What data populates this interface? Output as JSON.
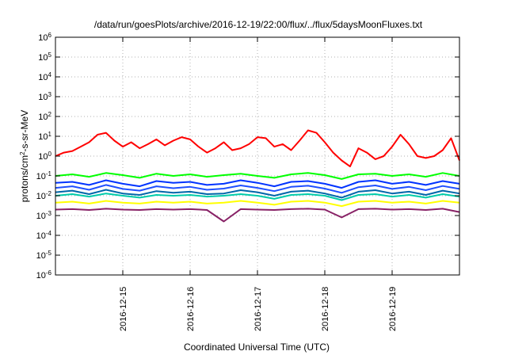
{
  "chart_data": {
    "type": "line",
    "title": "/data/run/goesPlots/archive/2016-12-19/22:00/flux/../flux/5daysMoonFluxes.txt",
    "xlabel": "Coordinated Universal Time (UTC)",
    "ylabel_parts": [
      "protons/cm",
      "2",
      "-s-sr-MeV"
    ],
    "x_range": [
      "2016-12-14T00:00",
      "2016-12-20T00:00"
    ],
    "x_ticks": [
      "2016-12-15",
      "2016-12-16",
      "2016-12-17",
      "2016-12-18",
      "2016-12-19"
    ],
    "y_scale": "log",
    "y_range": [
      1e-06,
      1000000.0
    ],
    "y_ticks": [
      {
        "base": "10",
        "exp": "-6"
      },
      {
        "base": "10",
        "exp": "-5"
      },
      {
        "base": "10",
        "exp": "-4"
      },
      {
        "base": "10",
        "exp": "-3"
      },
      {
        "base": "10",
        "exp": "-2"
      },
      {
        "base": "10",
        "exp": "-1"
      },
      {
        "base": "10",
        "exp": "0"
      },
      {
        "base": "10",
        "exp": "1"
      },
      {
        "base": "10",
        "exp": "2"
      },
      {
        "base": "10",
        "exp": "3"
      },
      {
        "base": "10",
        "exp": "4"
      },
      {
        "base": "10",
        "exp": "5"
      },
      {
        "base": "10",
        "exp": "6"
      }
    ],
    "grid": true,
    "legend": "none",
    "series": [
      {
        "color": "#ff0000",
        "x": [
          "2016-12-14T00:00",
          "2016-12-14T03:00",
          "2016-12-14T06:00",
          "2016-12-14T09:00",
          "2016-12-14T12:00",
          "2016-12-14T15:00",
          "2016-12-14T18:00",
          "2016-12-14T21:00",
          "2016-12-15T00:00",
          "2016-12-15T03:00",
          "2016-12-15T06:00",
          "2016-12-15T09:00",
          "2016-12-15T12:00",
          "2016-12-15T15:00",
          "2016-12-15T18:00",
          "2016-12-15T21:00",
          "2016-12-16T00:00",
          "2016-12-16T03:00",
          "2016-12-16T06:00",
          "2016-12-16T09:00",
          "2016-12-16T12:00",
          "2016-12-16T15:00",
          "2016-12-16T18:00",
          "2016-12-16T21:00",
          "2016-12-17T00:00",
          "2016-12-17T03:00",
          "2016-12-17T06:00",
          "2016-12-17T09:00",
          "2016-12-17T12:00",
          "2016-12-17T15:00",
          "2016-12-17T18:00",
          "2016-12-17T21:00",
          "2016-12-18T00:00",
          "2016-12-18T03:00",
          "2016-12-18T06:00",
          "2016-12-18T09:00",
          "2016-12-18T12:00",
          "2016-12-18T15:00",
          "2016-12-18T18:00",
          "2016-12-18T21:00",
          "2016-12-19T00:00",
          "2016-12-19T03:00",
          "2016-12-19T06:00",
          "2016-12-19T09:00",
          "2016-12-19T12:00",
          "2016-12-19T15:00",
          "2016-12-19T18:00",
          "2016-12-19T21:00",
          "2016-12-20T00:00"
        ],
        "values": [
          1.0,
          1.5,
          1.8,
          3.0,
          5.0,
          12,
          15,
          6,
          3,
          5,
          2.5,
          4,
          7,
          3.5,
          6,
          9,
          7,
          3,
          1.5,
          2.5,
          5,
          2,
          2.5,
          4,
          9,
          8,
          3,
          4,
          2,
          6,
          20,
          15,
          5,
          1.5,
          0.6,
          0.3,
          2.5,
          1.5,
          0.7,
          1.0,
          3,
          12,
          4,
          1.0,
          0.8,
          1.0,
          2,
          8,
          0.6
        ]
      },
      {
        "color": "#00ff00",
        "x": [
          "2016-12-14T00:00",
          "2016-12-14T06:00",
          "2016-12-14T12:00",
          "2016-12-14T18:00",
          "2016-12-15T00:00",
          "2016-12-15T06:00",
          "2016-12-15T12:00",
          "2016-12-15T18:00",
          "2016-12-16T00:00",
          "2016-12-16T06:00",
          "2016-12-16T12:00",
          "2016-12-16T18:00",
          "2016-12-17T00:00",
          "2016-12-17T06:00",
          "2016-12-17T12:00",
          "2016-12-17T18:00",
          "2016-12-18T00:00",
          "2016-12-18T06:00",
          "2016-12-18T12:00",
          "2016-12-18T18:00",
          "2016-12-19T00:00",
          "2016-12-19T06:00",
          "2016-12-19T12:00",
          "2016-12-19T18:00",
          "2016-12-20T00:00"
        ],
        "values": [
          0.1,
          0.12,
          0.09,
          0.14,
          0.11,
          0.08,
          0.13,
          0.1,
          0.12,
          0.09,
          0.11,
          0.13,
          0.1,
          0.08,
          0.12,
          0.14,
          0.11,
          0.07,
          0.12,
          0.13,
          0.1,
          0.12,
          0.09,
          0.14,
          0.1
        ]
      },
      {
        "color": "#0033ff",
        "x": [
          "2016-12-14T00:00",
          "2016-12-14T06:00",
          "2016-12-14T12:00",
          "2016-12-14T18:00",
          "2016-12-15T00:00",
          "2016-12-15T06:00",
          "2016-12-15T12:00",
          "2016-12-15T18:00",
          "2016-12-16T00:00",
          "2016-12-16T06:00",
          "2016-12-16T12:00",
          "2016-12-16T18:00",
          "2016-12-17T00:00",
          "2016-12-17T06:00",
          "2016-12-17T12:00",
          "2016-12-17T18:00",
          "2016-12-18T00:00",
          "2016-12-18T06:00",
          "2016-12-18T12:00",
          "2016-12-18T18:00",
          "2016-12-19T00:00",
          "2016-12-19T06:00",
          "2016-12-19T12:00",
          "2016-12-19T18:00",
          "2016-12-20T00:00"
        ],
        "values": [
          0.045,
          0.05,
          0.035,
          0.06,
          0.04,
          0.03,
          0.055,
          0.045,
          0.05,
          0.035,
          0.04,
          0.06,
          0.045,
          0.03,
          0.05,
          0.055,
          0.04,
          0.025,
          0.05,
          0.06,
          0.04,
          0.05,
          0.035,
          0.055,
          0.04
        ]
      },
      {
        "color": "#2050ff",
        "x": [
          "2016-12-14T00:00",
          "2016-12-14T06:00",
          "2016-12-14T12:00",
          "2016-12-14T18:00",
          "2016-12-15T00:00",
          "2016-12-15T06:00",
          "2016-12-15T12:00",
          "2016-12-15T18:00",
          "2016-12-16T00:00",
          "2016-12-16T06:00",
          "2016-12-16T12:00",
          "2016-12-16T18:00",
          "2016-12-17T00:00",
          "2016-12-17T06:00",
          "2016-12-17T12:00",
          "2016-12-17T18:00",
          "2016-12-18T00:00",
          "2016-12-18T06:00",
          "2016-12-18T12:00",
          "2016-12-18T18:00",
          "2016-12-19T00:00",
          "2016-12-19T06:00",
          "2016-12-19T12:00",
          "2016-12-19T18:00",
          "2016-12-20T00:00"
        ],
        "values": [
          0.025,
          0.03,
          0.02,
          0.035,
          0.022,
          0.018,
          0.03,
          0.024,
          0.028,
          0.02,
          0.023,
          0.033,
          0.025,
          0.017,
          0.028,
          0.032,
          0.023,
          0.014,
          0.027,
          0.033,
          0.022,
          0.028,
          0.019,
          0.031,
          0.022
        ]
      },
      {
        "color": "#0066aa",
        "x": [
          "2016-12-14T00:00",
          "2016-12-14T06:00",
          "2016-12-14T12:00",
          "2016-12-14T18:00",
          "2016-12-15T00:00",
          "2016-12-15T06:00",
          "2016-12-15T12:00",
          "2016-12-15T18:00",
          "2016-12-16T00:00",
          "2016-12-16T06:00",
          "2016-12-16T12:00",
          "2016-12-16T18:00",
          "2016-12-17T00:00",
          "2016-12-17T06:00",
          "2016-12-17T12:00",
          "2016-12-17T18:00",
          "2016-12-18T00:00",
          "2016-12-18T06:00",
          "2016-12-18T12:00",
          "2016-12-18T18:00",
          "2016-12-19T00:00",
          "2016-12-19T06:00",
          "2016-12-19T12:00",
          "2016-12-19T18:00",
          "2016-12-20T00:00"
        ],
        "values": [
          0.015,
          0.018,
          0.012,
          0.02,
          0.013,
          0.011,
          0.017,
          0.014,
          0.016,
          0.012,
          0.013,
          0.019,
          0.015,
          0.01,
          0.016,
          0.018,
          0.013,
          0.008,
          0.016,
          0.019,
          0.013,
          0.016,
          0.011,
          0.018,
          0.013
        ]
      },
      {
        "color": "#00ccaa",
        "x": [
          "2016-12-14T00:00",
          "2016-12-14T06:00",
          "2016-12-14T12:00",
          "2016-12-14T18:00",
          "2016-12-15T00:00",
          "2016-12-15T06:00",
          "2016-12-15T12:00",
          "2016-12-15T18:00",
          "2016-12-16T00:00",
          "2016-12-16T06:00",
          "2016-12-16T12:00",
          "2016-12-16T18:00",
          "2016-12-17T00:00",
          "2016-12-17T06:00",
          "2016-12-17T12:00",
          "2016-12-17T18:00",
          "2016-12-18T00:00",
          "2016-12-18T06:00",
          "2016-12-18T12:00",
          "2016-12-18T18:00",
          "2016-12-19T00:00",
          "2016-12-19T06:00",
          "2016-12-19T12:00",
          "2016-12-19T18:00",
          "2016-12-20T00:00"
        ],
        "values": [
          0.01,
          0.012,
          0.009,
          0.013,
          0.01,
          0.008,
          0.011,
          0.01,
          0.011,
          0.009,
          0.01,
          0.012,
          0.01,
          0.007,
          0.011,
          0.012,
          0.01,
          0.006,
          0.011,
          0.012,
          0.009,
          0.011,
          0.008,
          0.012,
          0.009
        ]
      },
      {
        "color": "#ffff00",
        "x": [
          "2016-12-14T00:00",
          "2016-12-14T06:00",
          "2016-12-14T12:00",
          "2016-12-14T18:00",
          "2016-12-15T00:00",
          "2016-12-15T06:00",
          "2016-12-15T12:00",
          "2016-12-15T18:00",
          "2016-12-16T00:00",
          "2016-12-16T06:00",
          "2016-12-16T12:00",
          "2016-12-16T18:00",
          "2016-12-17T00:00",
          "2016-12-17T06:00",
          "2016-12-17T12:00",
          "2016-12-17T18:00",
          "2016-12-18T00:00",
          "2016-12-18T06:00",
          "2016-12-18T12:00",
          "2016-12-18T18:00",
          "2016-12-19T00:00",
          "2016-12-19T06:00",
          "2016-12-19T12:00",
          "2016-12-19T18:00",
          "2016-12-20T00:00"
        ],
        "values": [
          0.0045,
          0.005,
          0.004,
          0.0055,
          0.0045,
          0.004,
          0.005,
          0.0045,
          0.005,
          0.004,
          0.0045,
          0.0055,
          0.0045,
          0.0035,
          0.005,
          0.0055,
          0.0045,
          0.003,
          0.005,
          0.0055,
          0.0045,
          0.005,
          0.004,
          0.0055,
          0.0045
        ]
      },
      {
        "color": "#882266",
        "x": [
          "2016-12-14T00:00",
          "2016-12-14T06:00",
          "2016-12-14T12:00",
          "2016-12-14T18:00",
          "2016-12-15T00:00",
          "2016-12-15T06:00",
          "2016-12-15T12:00",
          "2016-12-15T18:00",
          "2016-12-16T00:00",
          "2016-12-16T06:00",
          "2016-12-16T12:00",
          "2016-12-16T18:00",
          "2016-12-17T00:00",
          "2016-12-17T06:00",
          "2016-12-17T12:00",
          "2016-12-17T18:00",
          "2016-12-18T00:00",
          "2016-12-18T06:00",
          "2016-12-18T12:00",
          "2016-12-18T18:00",
          "2016-12-19T00:00",
          "2016-12-19T06:00",
          "2016-12-19T12:00",
          "2016-12-19T18:00",
          "2016-12-20T00:00"
        ],
        "values": [
          0.002,
          0.0021,
          0.0019,
          0.0022,
          0.002,
          0.0019,
          0.0021,
          0.002,
          0.0021,
          0.0019,
          0.0005,
          0.0021,
          0.002,
          0.0019,
          0.0021,
          0.0022,
          0.002,
          0.0008,
          0.0021,
          0.0022,
          0.002,
          0.0021,
          0.0019,
          0.0022,
          0.0015
        ]
      }
    ]
  }
}
